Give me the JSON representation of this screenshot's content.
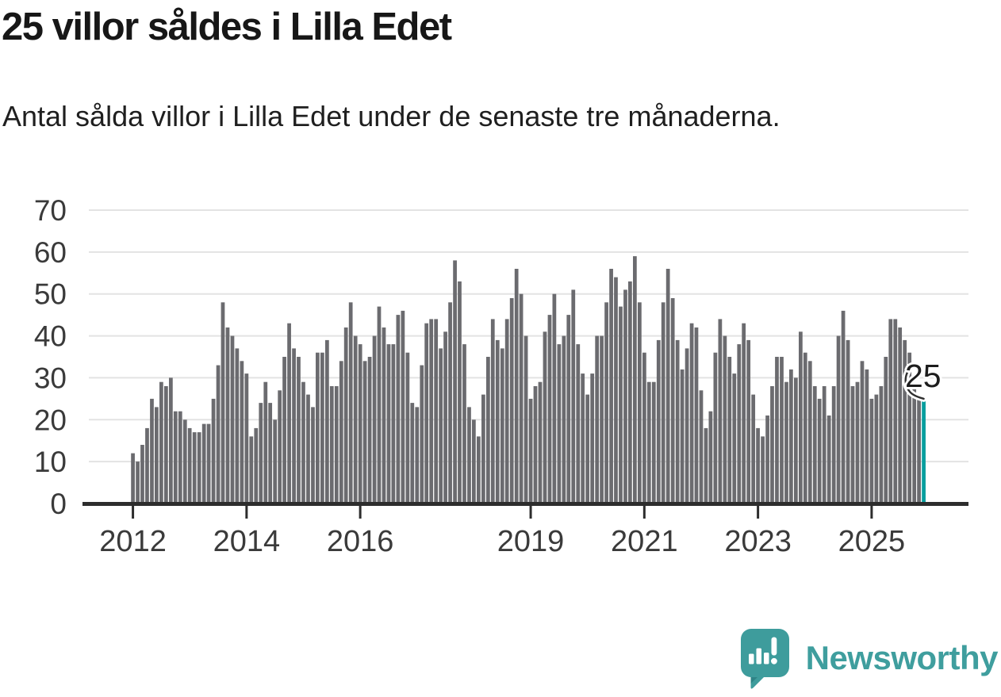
{
  "header": {
    "title": "25 villor såldes i Lilla Edet",
    "subtitle": "Antal sålda villor i Lilla Edet under de senaste tre månaderna."
  },
  "annotation": {
    "label": "25"
  },
  "footer": {
    "brand": "Newsworthy",
    "icon": "newsworthy-speech-bubble-bar-chart-icon"
  },
  "colors": {
    "background": "#ffffff",
    "bar": "#6b6b6f",
    "highlight": "#079e9e",
    "grid": "#e3e3e3",
    "axis": "#2d2d2d",
    "axis_text": "#3a3a3a",
    "title_text": "#171717",
    "brand": "#3f9e9e"
  },
  "chart_data": {
    "type": "bar",
    "title": "25 villor såldes i Lilla Edet",
    "subtitle": "Antal sålda villor i Lilla Edet under de senaste tre månaderna.",
    "xlabel": "",
    "ylabel": "",
    "x_unit": "month",
    "x_start": "2012-01",
    "x_end": "2025-12",
    "ylim": [
      0,
      70
    ],
    "yticks": [
      0,
      10,
      20,
      30,
      40,
      50,
      60,
      70
    ],
    "grid": "horizontal",
    "legend": "none",
    "x_ticks": [
      {
        "label": "2012",
        "month_index": 0
      },
      {
        "label": "2014",
        "month_index": 24
      },
      {
        "label": "2016",
        "month_index": 48
      },
      {
        "label": "2019",
        "month_index": 84
      },
      {
        "label": "2021",
        "month_index": 108
      },
      {
        "label": "2023",
        "month_index": 132
      },
      {
        "label": "2025",
        "month_index": 156
      }
    ],
    "values": [
      12,
      10,
      14,
      18,
      25,
      23,
      29,
      28,
      30,
      22,
      22,
      20,
      18,
      17,
      17,
      19,
      19,
      25,
      33,
      48,
      42,
      40,
      37,
      34,
      31,
      16,
      18,
      24,
      29,
      24,
      20,
      27,
      35,
      43,
      37,
      35,
      29,
      26,
      23,
      36,
      36,
      39,
      28,
      28,
      34,
      42,
      48,
      40,
      38,
      34,
      35,
      40,
      47,
      42,
      38,
      38,
      45,
      46,
      36,
      24,
      23,
      33,
      43,
      44,
      44,
      37,
      41,
      48,
      58,
      53,
      38,
      23,
      20,
      16,
      26,
      35,
      44,
      39,
      37,
      44,
      49,
      56,
      50,
      40,
      25,
      28,
      29,
      41,
      45,
      50,
      38,
      40,
      45,
      51,
      38,
      31,
      26,
      31,
      40,
      40,
      48,
      56,
      54,
      47,
      51,
      53,
      59,
      48,
      36,
      29,
      29,
      39,
      48,
      56,
      49,
      39,
      32,
      37,
      43,
      42,
      27,
      18,
      22,
      36,
      44,
      40,
      35,
      31,
      38,
      43,
      39,
      26,
      18,
      16,
      21,
      28,
      35,
      35,
      29,
      32,
      30,
      41,
      36,
      34,
      28,
      25,
      28,
      21,
      28,
      40,
      46,
      39,
      28,
      29,
      34,
      32,
      25,
      26,
      28,
      35,
      44,
      44,
      42,
      39,
      36,
      28,
      26,
      25
    ],
    "highlight": {
      "index": 167,
      "value": 25,
      "label": "25"
    }
  }
}
